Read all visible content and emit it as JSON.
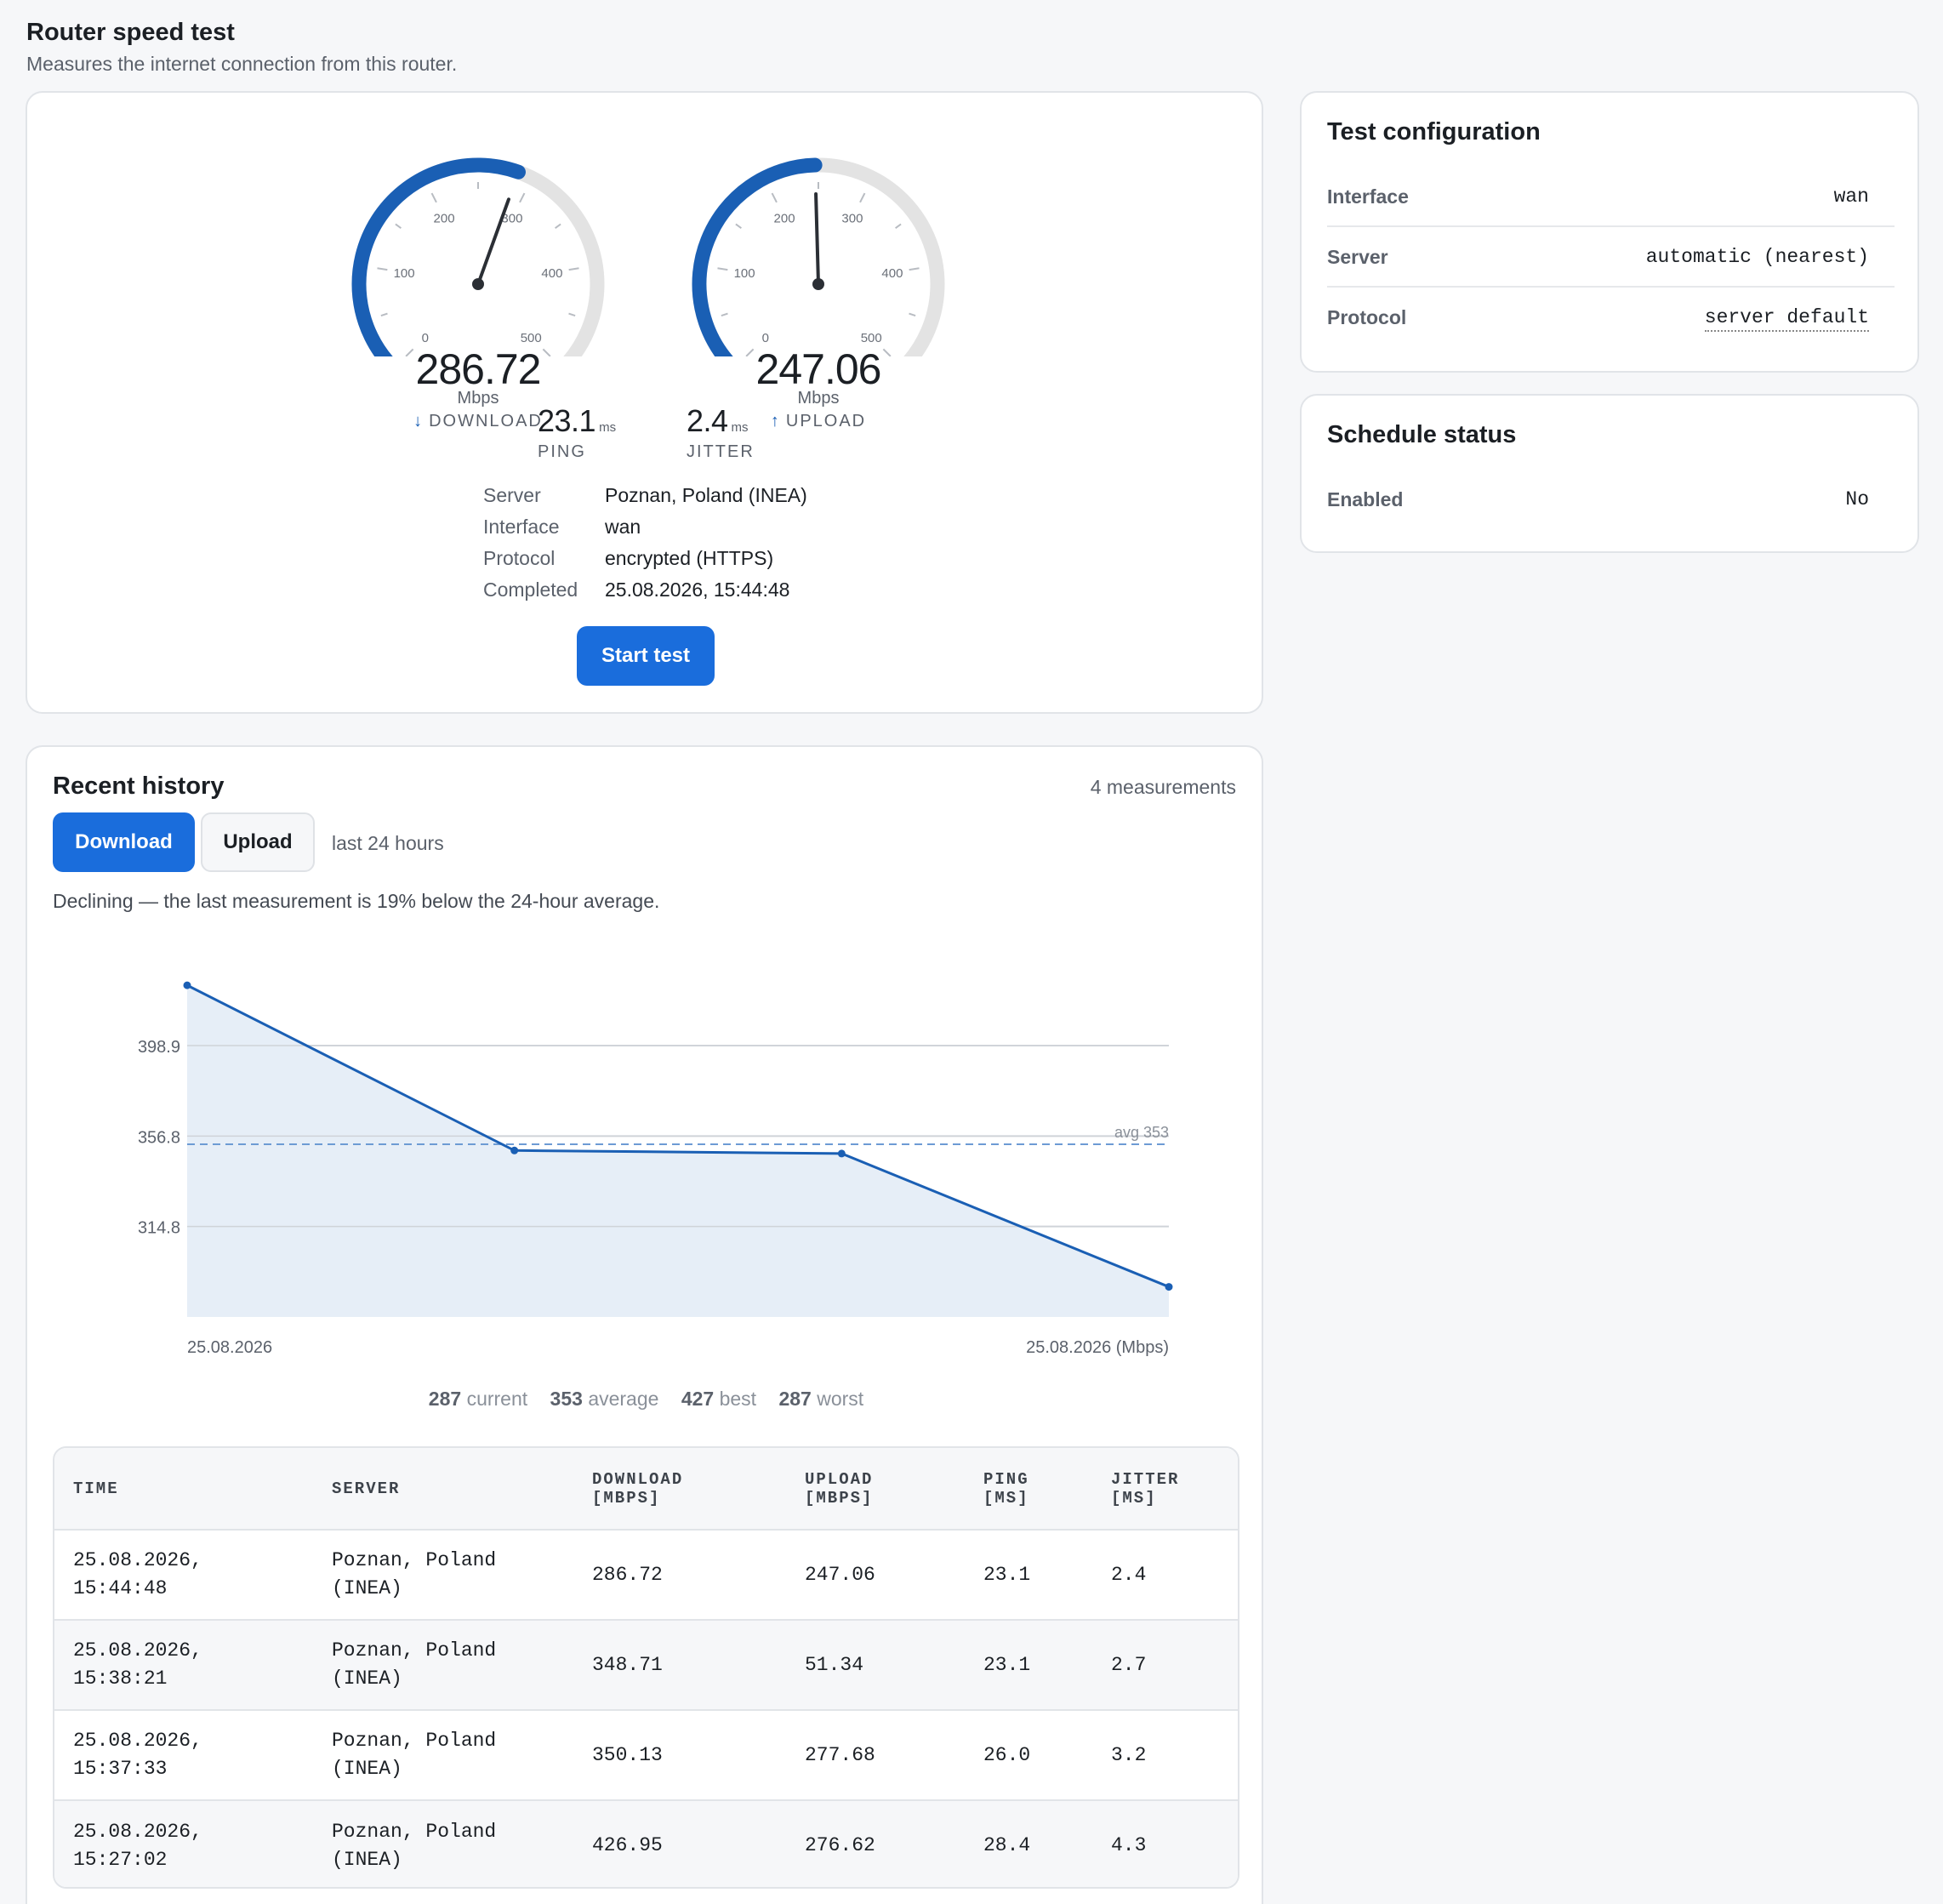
{
  "page": {
    "title": "Router speed test",
    "subtitle": "Measures the internet connection from this router."
  },
  "result": {
    "download": {
      "value": "286.72",
      "unit": "Mbps",
      "label": "DOWNLOAD",
      "arrow": "↓",
      "mbps": 286.72
    },
    "upload": {
      "value": "247.06",
      "unit": "Mbps",
      "label": "UPLOAD",
      "arrow": "↑",
      "mbps": 247.06
    },
    "gauge_max": 500,
    "gauge_ticks": [
      "0",
      "100",
      "200",
      "300",
      "400",
      "500"
    ],
    "ping": {
      "value": "23.1",
      "unit": "ms",
      "label": "PING"
    },
    "jitter": {
      "value": "2.4",
      "unit": "ms",
      "label": "JITTER"
    },
    "details": [
      {
        "key": "Server",
        "value": "Poznan, Poland (INEA)"
      },
      {
        "key": "Interface",
        "value": "wan"
      },
      {
        "key": "Protocol",
        "value": "encrypted (HTTPS)"
      },
      {
        "key": "Completed",
        "value": "25.08.2026, 15:44:48"
      }
    ],
    "start_label": "Start test"
  },
  "config": {
    "title": "Test configuration",
    "rows": [
      {
        "key": "Interface",
        "value": "wan"
      },
      {
        "key": "Server",
        "value": "automatic (nearest)"
      },
      {
        "key": "Protocol",
        "value": "server default"
      }
    ]
  },
  "schedule": {
    "title": "Schedule status",
    "rows": [
      {
        "key": "Enabled",
        "value": "No"
      }
    ]
  },
  "history": {
    "title": "Recent history",
    "count": "4 measurements",
    "tabs": {
      "download": "Download",
      "upload": "Upload"
    },
    "range": "last 24 hours",
    "trend": "Declining — the last measurement is 19% below the 24-hour average.",
    "stats": [
      {
        "value": "287",
        "label": "current"
      },
      {
        "value": "353",
        "label": "average"
      },
      {
        "value": "427",
        "label": "best"
      },
      {
        "value": "287",
        "label": "worst"
      }
    ],
    "columns": [
      "TIME",
      "SERVER",
      "DOWNLOAD\n[MBPS]",
      "UPLOAD\n[MBPS]",
      "PING\n[MS]",
      "JITTER\n[MS]"
    ],
    "rows": [
      {
        "time": "25.08.2026,\n15:44:48",
        "server": "Poznan, Poland\n(INEA)",
        "download": "286.72",
        "upload": "247.06",
        "ping": "23.1",
        "jitter": "2.4"
      },
      {
        "time": "25.08.2026,\n15:38:21",
        "server": "Poznan, Poland\n(INEA)",
        "download": "348.71",
        "upload": "51.34",
        "ping": "23.1",
        "jitter": "2.7"
      },
      {
        "time": "25.08.2026,\n15:37:33",
        "server": "Poznan, Poland\n(INEA)",
        "download": "350.13",
        "upload": "277.68",
        "ping": "26.0",
        "jitter": "3.2"
      },
      {
        "time": "25.08.2026,\n15:27:02",
        "server": "Poznan, Poland\n(INEA)",
        "download": "426.95",
        "upload": "276.62",
        "ping": "28.4",
        "jitter": "4.3"
      }
    ]
  },
  "chart_data": {
    "type": "area",
    "x": [
      "15:27:02",
      "15:37:33",
      "15:38:21",
      "15:44:48"
    ],
    "series": [
      {
        "values": [
          426.95,
          350.13,
          348.71,
          286.72
        ]
      }
    ],
    "y_ticks": [
      "398.9",
      "356.8",
      "314.8"
    ],
    "ylim": [
      272.7,
      427
    ],
    "x_labels": {
      "start": "25.08.2026",
      "end": "25.08.2026 (Mbps)"
    },
    "average": {
      "value": 353,
      "label": "avg 353"
    },
    "grid": true,
    "colors": {
      "line": "#1a5fb4",
      "fill": "#e6eef7",
      "avg": "#6d9bd4"
    }
  },
  "colors": {
    "accent": "#1a6ddc",
    "gauge_arc": "#1a5fb4",
    "gauge_track": "#e3e3e3"
  }
}
